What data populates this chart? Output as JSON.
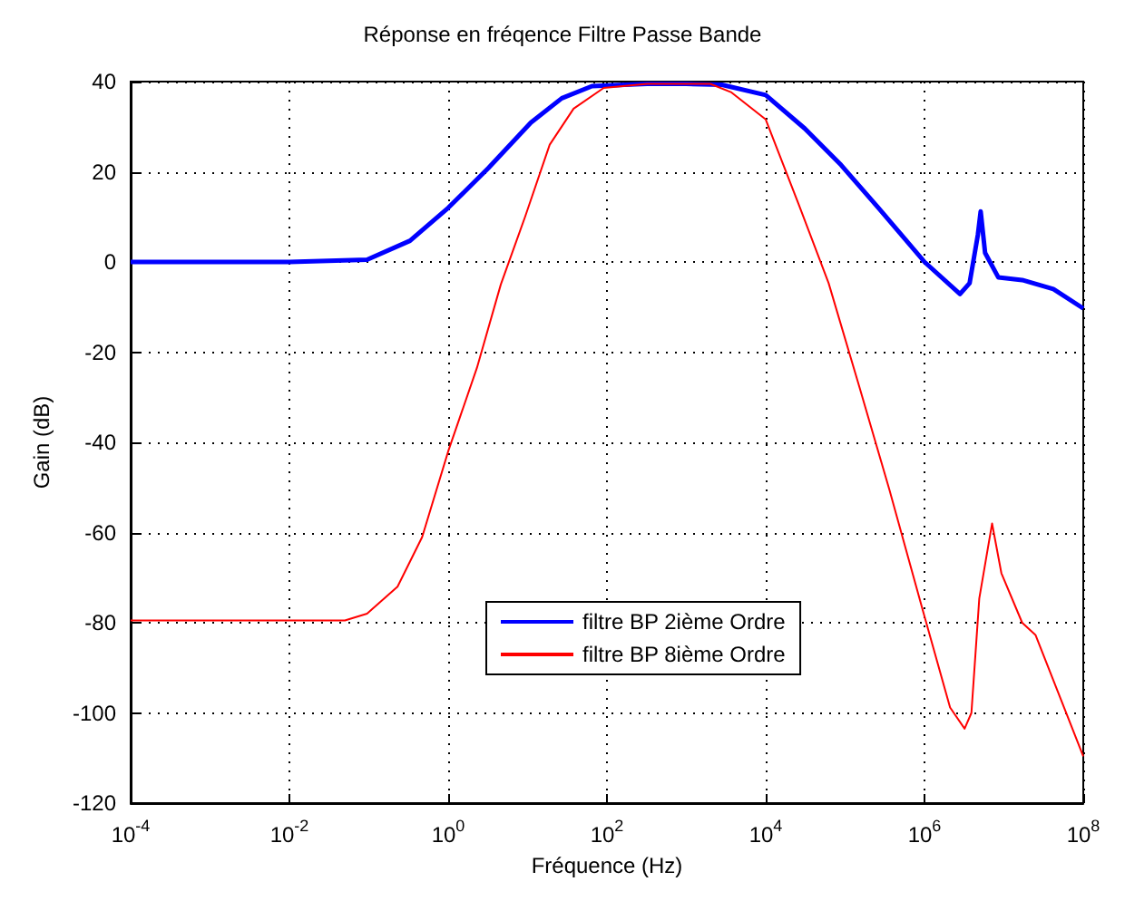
{
  "chart_data": {
    "type": "line",
    "title": "Réponse en fréqence Filtre Passe Bande",
    "xlabel": "Fréquence (Hz)",
    "ylabel": "Gain (dB)",
    "log": "x",
    "grid": true,
    "legend": "bottom",
    "marker": "none",
    "line_style": "solid",
    "xlim": [
      0.0001,
      100000000
    ],
    "xticks": [
      {
        "value": 0.0001,
        "label": "10$^{-4}$"
      },
      {
        "value": 0.01,
        "label": "10$^{-2}$"
      },
      {
        "value": 1,
        "label": "10$^{0}$"
      },
      {
        "value": 100,
        "label": "10$^{2}$"
      },
      {
        "value": 10000,
        "label": "10$^{4}$"
      },
      {
        "value": 1000000,
        "label": "10$^{6}$"
      },
      {
        "value": 100000000,
        "label": "10$^{8}$"
      }
    ],
    "ylim": [
      -120,
      40
    ],
    "yticks": [
      -120,
      -100,
      -80,
      -60,
      -40,
      -20,
      0,
      20,
      40
    ],
    "series": [
      {
        "name": "filtre BP 2ième Ordre",
        "color": "#0000ff",
        "x": [
          0.0001,
          0.01,
          0.095,
          0.33,
          1,
          3.2,
          11,
          27,
          65,
          320,
          1000,
          2800,
          10000,
          31000,
          89000,
          260000,
          1000000,
          2800000,
          3700000,
          4700000,
          5100000,
          5800000,
          8500000,
          17000000,
          42000000,
          100000000
        ],
        "values": [
          0,
          0,
          0.5,
          4.7,
          12,
          20.8,
          30.9,
          36.3,
          39,
          39.5,
          39.5,
          39.3,
          37,
          29.6,
          21.5,
          12.1,
          0,
          -7.1,
          -4.7,
          6,
          11.2,
          2,
          -3.4,
          -4,
          -6,
          -10.3
        ]
      },
      {
        "name": "filtre BP 8ième Ordre",
        "color": "#ff0000",
        "x": [
          0.0001,
          0.01,
          0.05,
          0.095,
          0.23,
          0.47,
          1,
          2.3,
          4.6,
          9.3,
          19,
          38,
          91,
          320,
          2000,
          3700,
          10000,
          26000,
          62000,
          150000,
          360000,
          1000000,
          2100000,
          3200000,
          3900000,
          4900000,
          7100000,
          9300000,
          17000000,
          25000000,
          100000000
        ],
        "values": [
          -79.5,
          -79.5,
          -79.5,
          -78,
          -72,
          -61,
          -42,
          -23.5,
          -5,
          10,
          26,
          34,
          38.6,
          39.5,
          39.5,
          37.6,
          31.6,
          12.8,
          -4.7,
          -27.5,
          -50.4,
          -78.6,
          -98.8,
          -103.5,
          -100,
          -74.6,
          -58,
          -69,
          -80,
          -82.7,
          -109.6
        ]
      }
    ]
  }
}
